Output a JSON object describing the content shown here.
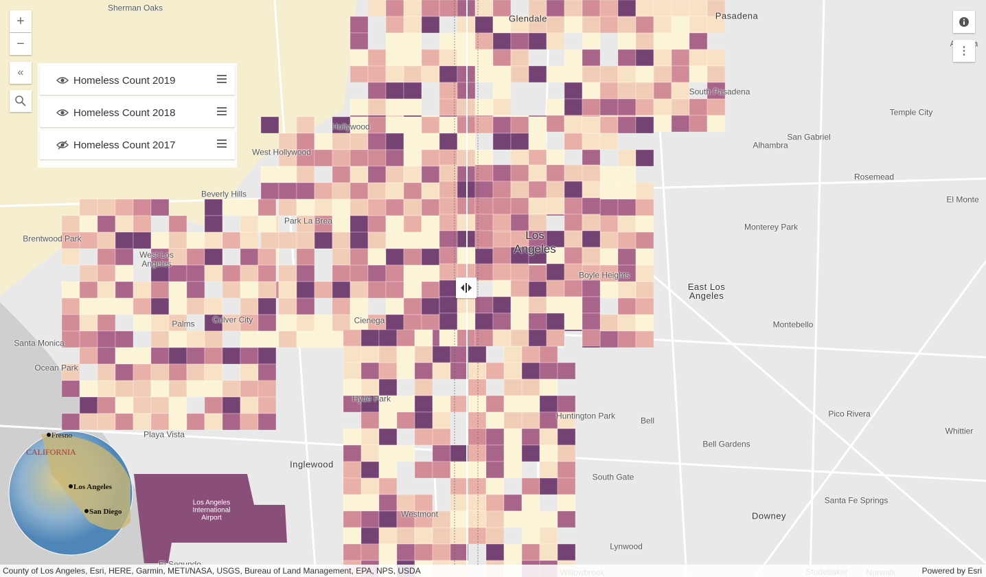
{
  "layers": [
    {
      "title": "Homeless Count 2019",
      "visible": true
    },
    {
      "title": "Homeless Count 2018",
      "visible": true
    },
    {
      "title": "Homeless Count 2017",
      "visible": false
    }
  ],
  "places": [
    "Sherman Oaks",
    "Glendale",
    "Pasadena",
    "Arcadia",
    "South Pasadena",
    "Temple City",
    "San Gabriel",
    "Alhambra",
    "Rosemead",
    "El Monte",
    "Monterey Park",
    "Hollywood",
    "West Hollywood",
    "Beverly Hills",
    "Park La Brea",
    "Brentwood Park",
    "West Los Angeles",
    "Boyle Heights",
    "East Los Angeles",
    "Montebello",
    "Palms",
    "Culver City",
    "Cienega",
    "Santa Monica",
    "Ocean Park",
    "Hyde Park",
    "Huntington Park",
    "Bell",
    "Pico Rivera",
    "Whittier",
    "Playa Vista",
    "Bell Gardens",
    "Inglewood",
    "South Gate",
    "Downey",
    "Santa Fe Springs",
    "Westmont",
    "Lynwood",
    "El Segundo",
    "Willowbrook",
    "Studebaker",
    "Norwalk"
  ],
  "city_label": "Los Angeles",
  "airport_label": "Los Angeles International Airport",
  "inset_labels": [
    "Fresno",
    "CALIFORNIA",
    "Los Angeles",
    "San Diego"
  ],
  "attribution": "County of Los Angeles, Esri, HERE, Garmin, METI/NASA, USGS, Bureau of Land Management, EPA, NPS, USDA",
  "powered_by": "Powered by Esri"
}
